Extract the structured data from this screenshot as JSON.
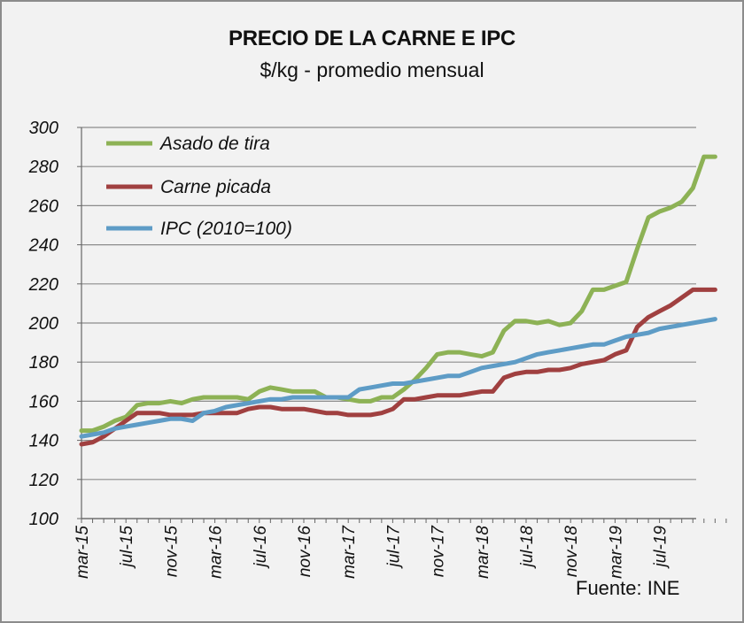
{
  "chart_data": {
    "type": "line",
    "title": "PRECIO DE LA CARNE E IPC",
    "subtitle": "$/kg - promedio mensual",
    "source": "Fuente: INE",
    "ylim": [
      100,
      300
    ],
    "yticks": [
      100,
      120,
      140,
      160,
      180,
      200,
      220,
      240,
      260,
      280,
      300
    ],
    "grid": true,
    "legend_position": "top-left",
    "xtick_labels": [
      "mar-15",
      "jul-15",
      "nov-15",
      "mar-16",
      "jul-16",
      "nov-16",
      "mar-17",
      "jul-17",
      "nov-17",
      "mar-18",
      "jul-18",
      "nov-18",
      "mar-19",
      "jul-19"
    ],
    "x": [
      "mar-15",
      "abr-15",
      "may-15",
      "jun-15",
      "jul-15",
      "ago-15",
      "sep-15",
      "oct-15",
      "nov-15",
      "dic-15",
      "ene-16",
      "feb-16",
      "mar-16",
      "abr-16",
      "may-16",
      "jun-16",
      "jul-16",
      "ago-16",
      "sep-16",
      "oct-16",
      "nov-16",
      "dic-16",
      "ene-17",
      "feb-17",
      "mar-17",
      "abr-17",
      "may-17",
      "jun-17",
      "jul-17",
      "ago-17",
      "sep-17",
      "oct-17",
      "nov-17",
      "dic-17",
      "ene-18",
      "feb-18",
      "mar-18",
      "abr-18",
      "may-18",
      "jun-18",
      "jul-18",
      "ago-18",
      "sep-18",
      "oct-18",
      "nov-18",
      "dic-18",
      "ene-19",
      "feb-19",
      "mar-19",
      "abr-19",
      "may-19",
      "jun-19",
      "jul-19",
      "ago-19",
      "sep-19",
      "oct-19",
      "nov-19",
      "dic-19"
    ],
    "series": [
      {
        "name": "Asado de tira",
        "color": "#8db255",
        "values": [
          145,
          145,
          147,
          150,
          152,
          158,
          159,
          159,
          160,
          159,
          161,
          162,
          162,
          162,
          162,
          161,
          165,
          167,
          166,
          165,
          165,
          165,
          162,
          162,
          161,
          160,
          160,
          162,
          162,
          166,
          171,
          177,
          184,
          185,
          185,
          184,
          183,
          185,
          196,
          201,
          201,
          200,
          201,
          199,
          200,
          206,
          217,
          217,
          219,
          221,
          238,
          254,
          257,
          259,
          262,
          269,
          285,
          285
        ]
      },
      {
        "name": "Carne picada",
        "color": "#a04040",
        "values": [
          138,
          139,
          142,
          146,
          150,
          154,
          154,
          154,
          153,
          153,
          153,
          154,
          154,
          154,
          154,
          156,
          157,
          157,
          156,
          156,
          156,
          155,
          154,
          154,
          153,
          153,
          153,
          154,
          156,
          161,
          161,
          162,
          163,
          163,
          163,
          164,
          165,
          165,
          172,
          174,
          175,
          175,
          176,
          176,
          177,
          179,
          180,
          181,
          184,
          186,
          198,
          203,
          206,
          209,
          213,
          217,
          217,
          217
        ]
      },
      {
        "name": "IPC (2010=100)",
        "color": "#5e9cc6",
        "values": [
          142,
          143,
          144,
          146,
          147,
          148,
          149,
          150,
          151,
          151,
          150,
          154,
          155,
          157,
          158,
          159,
          160,
          161,
          161,
          162,
          162,
          162,
          162,
          162,
          162,
          166,
          167,
          168,
          169,
          169,
          170,
          171,
          172,
          173,
          173,
          175,
          177,
          178,
          179,
          180,
          182,
          184,
          185,
          186,
          187,
          188,
          189,
          189,
          191,
          193,
          194,
          195,
          197,
          198,
          199,
          200,
          201,
          202
        ]
      }
    ]
  }
}
